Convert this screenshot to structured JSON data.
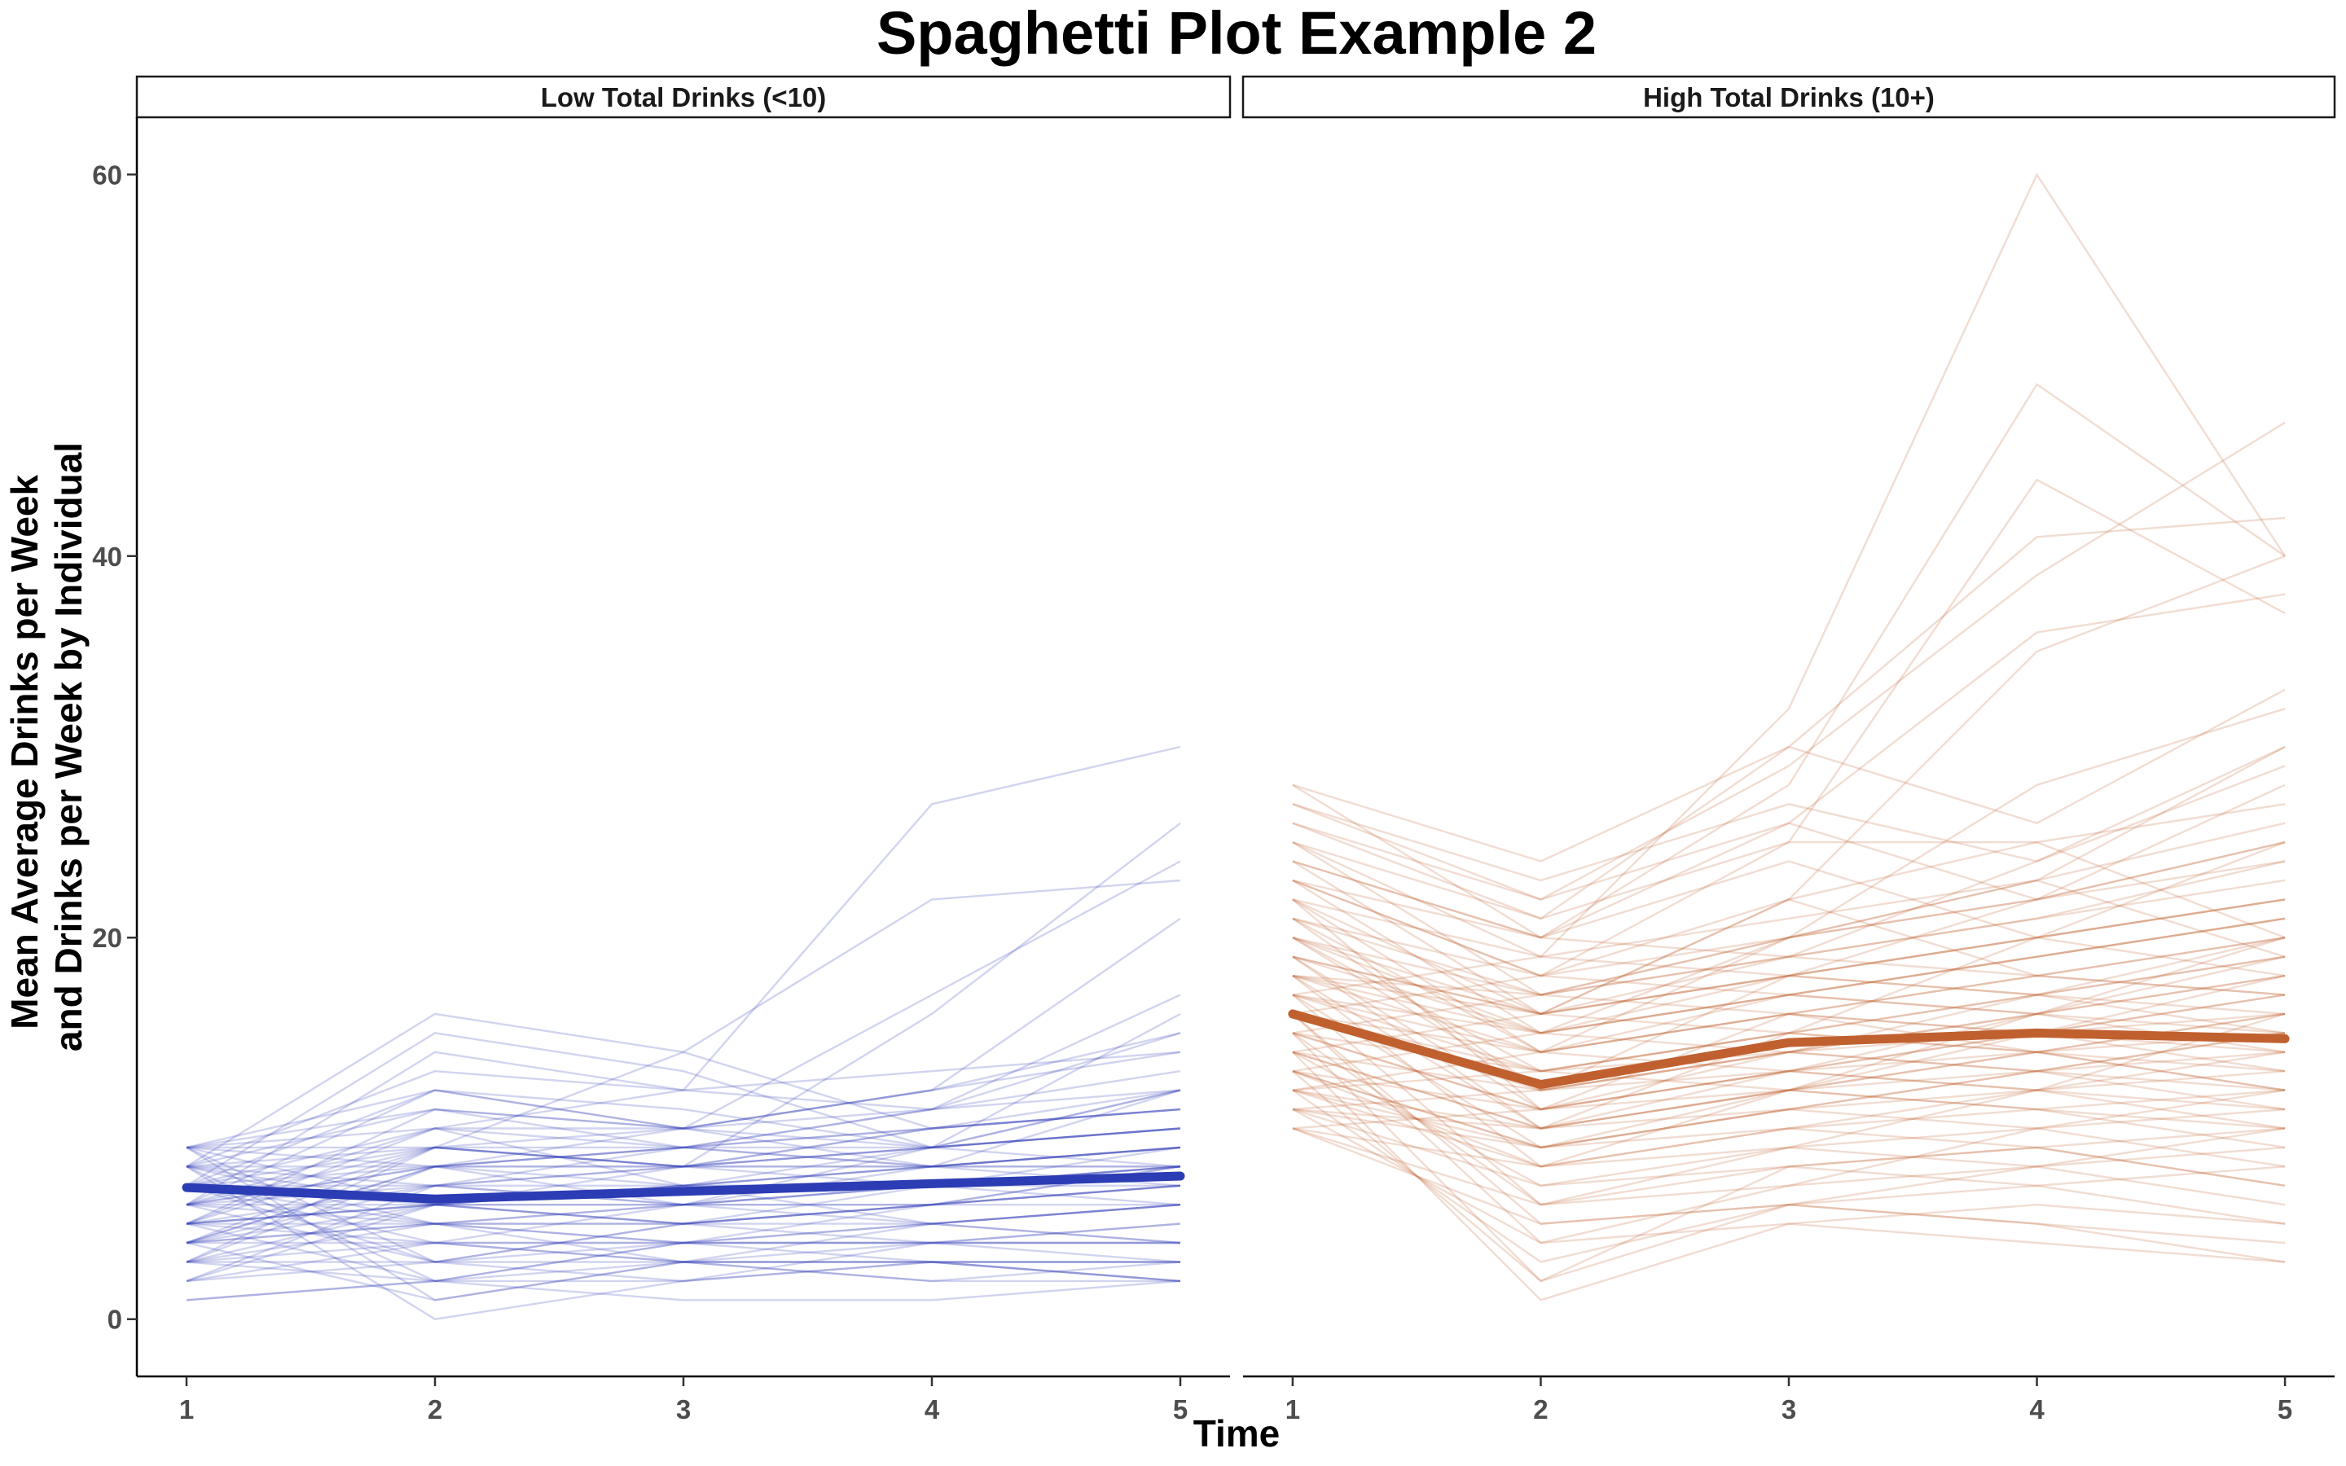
{
  "chart_data": {
    "type": "line",
    "title": "Spaghetti Plot Example 2",
    "xlabel": "Time",
    "ylabel": [
      "Mean Average Drinks per Week",
      "and Drinks per Week by Individual"
    ],
    "x": [
      1,
      2,
      3,
      4,
      5
    ],
    "x_ticks": [
      "1",
      "2",
      "3",
      "4",
      "5"
    ],
    "y_ticks": [
      "0",
      "20",
      "40",
      "60"
    ],
    "ylim": [
      -3,
      63
    ],
    "xlim": [
      0.8,
      5.2
    ],
    "grid": false,
    "legend": "none",
    "facets": [
      {
        "label": "Low Total Drinks (<10)",
        "color": "#2c3cb4",
        "mean": [
          6.9,
          6.3,
          6.7,
          7.1,
          7.5
        ],
        "individuals": [
          [
            9,
            12,
            10,
            8,
            9
          ],
          [
            8,
            16,
            14,
            10,
            11
          ],
          [
            7,
            15,
            13,
            9,
            10
          ],
          [
            6,
            14,
            12,
            11,
            12
          ],
          [
            5,
            10,
            9,
            8,
            7
          ],
          [
            4,
            8,
            6,
            5,
            4
          ],
          [
            3,
            6,
            5,
            4,
            3
          ],
          [
            2,
            4,
            3,
            3,
            2
          ],
          [
            1,
            2,
            3,
            3,
            2
          ],
          [
            9,
            1,
            3,
            4,
            4
          ],
          [
            8,
            0,
            2,
            3,
            3
          ],
          [
            7,
            5,
            4,
            5,
            6
          ],
          [
            6,
            12,
            10,
            12,
            15
          ],
          [
            5,
            9,
            8,
            10,
            11
          ],
          [
            4,
            7,
            6,
            7,
            8
          ],
          [
            3,
            5,
            5,
            6,
            7
          ],
          [
            2,
            3,
            4,
            4,
            5
          ],
          [
            9,
            11,
            9,
            9,
            10
          ],
          [
            8,
            13,
            12,
            13,
            14
          ],
          [
            7,
            6,
            7,
            8,
            9
          ],
          [
            6,
            8,
            9,
            10,
            11
          ],
          [
            5,
            11,
            10,
            9,
            8
          ],
          [
            4,
            5,
            6,
            7,
            8
          ],
          [
            3,
            9,
            8,
            7,
            6
          ],
          [
            2,
            7,
            8,
            9,
            10
          ],
          [
            9,
            6,
            5,
            6,
            7
          ],
          [
            8,
            7,
            9,
            11,
            17
          ],
          [
            7,
            10,
            12,
            27,
            30
          ],
          [
            6,
            9,
            14,
            22,
            23
          ],
          [
            5,
            6,
            8,
            16,
            26
          ],
          [
            4,
            8,
            10,
            17,
            24
          ],
          [
            9,
            10,
            10,
            12,
            21
          ],
          [
            8,
            5,
            6,
            9,
            16
          ],
          [
            7,
            4,
            3,
            5,
            6
          ],
          [
            6,
            3,
            2,
            4,
            5
          ],
          [
            5,
            2,
            1,
            1,
            2
          ],
          [
            4,
            1,
            3,
            2,
            2
          ],
          [
            3,
            2,
            4,
            5,
            6
          ],
          [
            8,
            9,
            8,
            8,
            9
          ],
          [
            7,
            8,
            7,
            7,
            8
          ],
          [
            6,
            7,
            6,
            6,
            7
          ],
          [
            5,
            6,
            5,
            5,
            6
          ],
          [
            4,
            4,
            4,
            4,
            4
          ],
          [
            9,
            3,
            5,
            7,
            9
          ],
          [
            8,
            2,
            4,
            6,
            8
          ],
          [
            7,
            12,
            11,
            9,
            12
          ],
          [
            6,
            10,
            7,
            5,
            4
          ],
          [
            5,
            5,
            3,
            2,
            3
          ],
          [
            4,
            6,
            7,
            8,
            9
          ],
          [
            3,
            4,
            6,
            8,
            12
          ],
          [
            9,
            8,
            9,
            10,
            11
          ],
          [
            8,
            6,
            7,
            8,
            9
          ],
          [
            7,
            3,
            5,
            6,
            8
          ],
          [
            6,
            5,
            4,
            3,
            2
          ],
          [
            5,
            7,
            8,
            9,
            12
          ],
          [
            4,
            9,
            10,
            11,
            13
          ],
          [
            3,
            8,
            9,
            11,
            15
          ],
          [
            2,
            6,
            7,
            9,
            10
          ],
          [
            1,
            2,
            2,
            3,
            3
          ],
          [
            7,
            7,
            7,
            7,
            7
          ],
          [
            6,
            6,
            6,
            6,
            6
          ],
          [
            5,
            4,
            4,
            4,
            4
          ],
          [
            8,
            8,
            8,
            8,
            8
          ],
          [
            9,
            9,
            9,
            8,
            8
          ],
          [
            3,
            3,
            3,
            3,
            3
          ],
          [
            7,
            9,
            8,
            10,
            12
          ],
          [
            6,
            8,
            8,
            9,
            10
          ],
          [
            5,
            6,
            6,
            7,
            8
          ],
          [
            4,
            5,
            5,
            6,
            7
          ],
          [
            8,
            11,
            10,
            12,
            14
          ]
        ]
      },
      {
        "label": "High Total Drinks (10+)",
        "color": "#c0602f",
        "mean": [
          16,
          12.3,
          14.5,
          15,
          14.7
        ],
        "individuals": [
          [
            28,
            24,
            30,
            26,
            33
          ],
          [
            27,
            23,
            27,
            24,
            30
          ],
          [
            26,
            22,
            26,
            22,
            25
          ],
          [
            25,
            21,
            25,
            25,
            20
          ],
          [
            24,
            20,
            24,
            20,
            18
          ],
          [
            23,
            18,
            22,
            18,
            17
          ],
          [
            22,
            11,
            16,
            14,
            12
          ],
          [
            21,
            17,
            20,
            23,
            30
          ],
          [
            20,
            16,
            18,
            17,
            15
          ],
          [
            19,
            15,
            17,
            16,
            14
          ],
          [
            18,
            14,
            16,
            15,
            13
          ],
          [
            17,
            13,
            15,
            14,
            12
          ],
          [
            16,
            12,
            14,
            13,
            11
          ],
          [
            15,
            11,
            13,
            12,
            10
          ],
          [
            14,
            10,
            12,
            11,
            9
          ],
          [
            13,
            9,
            11,
            10,
            8
          ],
          [
            12,
            8,
            10,
            9,
            7
          ],
          [
            11,
            7,
            9,
            8,
            6
          ],
          [
            10,
            6,
            8,
            7,
            5
          ],
          [
            10,
            5,
            6,
            5,
            4
          ],
          [
            11,
            4,
            5,
            6,
            5
          ],
          [
            12,
            3,
            6,
            5,
            3
          ],
          [
            13,
            2,
            8,
            9,
            7
          ],
          [
            14,
            1,
            5,
            4,
            3
          ],
          [
            15,
            2,
            6,
            8,
            10
          ],
          [
            16,
            4,
            7,
            10,
            12
          ],
          [
            17,
            6,
            9,
            12,
            16
          ],
          [
            18,
            8,
            12,
            16,
            20
          ],
          [
            19,
            10,
            15,
            20,
            25
          ],
          [
            20,
            12,
            18,
            22,
            28
          ],
          [
            21,
            14,
            20,
            28,
            32
          ],
          [
            22,
            16,
            22,
            35,
            40
          ],
          [
            23,
            18,
            25,
            44,
            37
          ],
          [
            24,
            20,
            28,
            49,
            40
          ],
          [
            25,
            19,
            32,
            60,
            40
          ],
          [
            26,
            21,
            30,
            41,
            42
          ],
          [
            27,
            22,
            29,
            39,
            47
          ],
          [
            28,
            20,
            26,
            36,
            38
          ],
          [
            12,
            14,
            16,
            18,
            20
          ],
          [
            13,
            15,
            17,
            19,
            21
          ],
          [
            14,
            16,
            18,
            20,
            22
          ],
          [
            15,
            17,
            19,
            21,
            23
          ],
          [
            16,
            18,
            20,
            22,
            24
          ],
          [
            17,
            19,
            21,
            23,
            26
          ],
          [
            18,
            17,
            19,
            24,
            29
          ],
          [
            19,
            16,
            22,
            25,
            27
          ],
          [
            20,
            15,
            20,
            23,
            19
          ],
          [
            11,
            12,
            13,
            14,
            15
          ],
          [
            12,
            13,
            14,
            15,
            16
          ],
          [
            10,
            11,
            12,
            13,
            14
          ],
          [
            11,
            10,
            11,
            12,
            13
          ],
          [
            12,
            9,
            10,
            11,
            12
          ],
          [
            13,
            8,
            9,
            10,
            11
          ],
          [
            14,
            7,
            8,
            9,
            10
          ],
          [
            15,
            6,
            7,
            8,
            9
          ],
          [
            16,
            5,
            6,
            7,
            8
          ],
          [
            17,
            9,
            11,
            13,
            15
          ],
          [
            18,
            10,
            12,
            14,
            16
          ],
          [
            19,
            11,
            13,
            15,
            17
          ],
          [
            20,
            13,
            15,
            17,
            19
          ],
          [
            21,
            12,
            14,
            16,
            18
          ],
          [
            22,
            14,
            17,
            19,
            21
          ],
          [
            23,
            15,
            18,
            20,
            22
          ],
          [
            24,
            16,
            19,
            21,
            24
          ],
          [
            25,
            17,
            20,
            22,
            25
          ],
          [
            13,
            9,
            12,
            15,
            18
          ],
          [
            14,
            10,
            13,
            16,
            19
          ],
          [
            15,
            11,
            14,
            17,
            20
          ],
          [
            16,
            13,
            12,
            11,
            10
          ],
          [
            17,
            14,
            13,
            12,
            11
          ],
          [
            18,
            15,
            14,
            13,
            12
          ],
          [
            19,
            16,
            15,
            14,
            13
          ],
          [
            20,
            17,
            16,
            15,
            14
          ],
          [
            21,
            18,
            17,
            16,
            15
          ],
          [
            22,
            19,
            18,
            17,
            16
          ],
          [
            23,
            20,
            19,
            18,
            17
          ],
          [
            10,
            8,
            10,
            12,
            14
          ],
          [
            11,
            9,
            11,
            13,
            15
          ],
          [
            12,
            10,
            12,
            14,
            16
          ],
          [
            13,
            11,
            13,
            15,
            17
          ],
          [
            14,
            12,
            14,
            16,
            18
          ],
          [
            15,
            13,
            15,
            17,
            19
          ],
          [
            16,
            14,
            16,
            18,
            20
          ],
          [
            17,
            15,
            17,
            19,
            21
          ],
          [
            18,
            16,
            18,
            20,
            22
          ]
        ]
      }
    ]
  }
}
